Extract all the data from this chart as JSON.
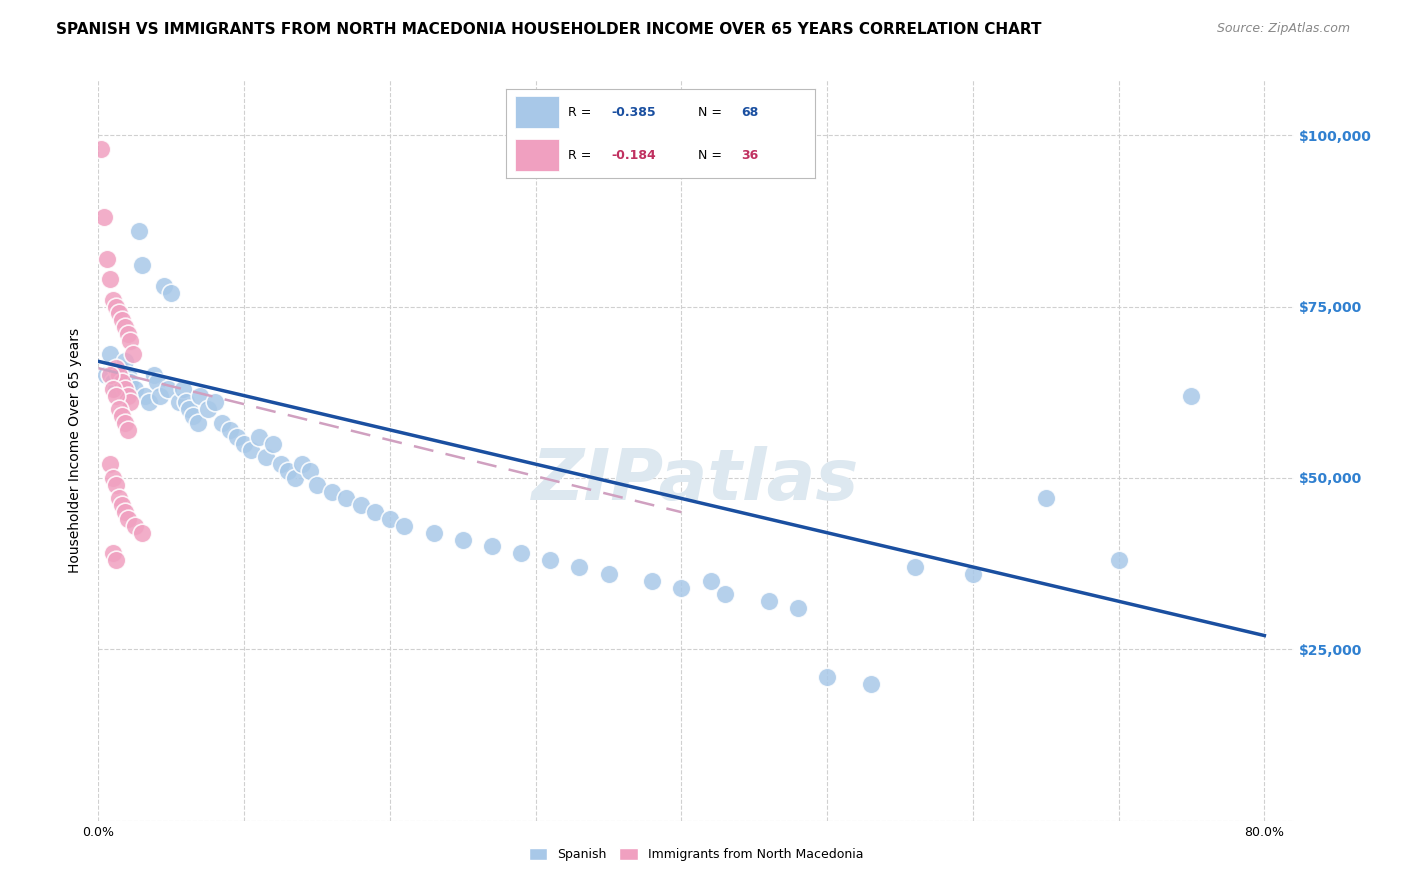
{
  "title": "SPANISH VS IMMIGRANTS FROM NORTH MACEDONIA HOUSEHOLDER INCOME OVER 65 YEARS CORRELATION CHART",
  "source": "Source: ZipAtlas.com",
  "ylabel": "Householder Income Over 65 years",
  "watermark": "ZIPatlas",
  "blue_scatter": [
    [
      0.005,
      65000
    ],
    [
      0.008,
      68000
    ],
    [
      0.01,
      64000
    ],
    [
      0.012,
      63000
    ],
    [
      0.015,
      66000
    ],
    [
      0.018,
      67000
    ],
    [
      0.02,
      65000
    ],
    [
      0.022,
      64000
    ],
    [
      0.025,
      63000
    ],
    [
      0.028,
      86000
    ],
    [
      0.03,
      81000
    ],
    [
      0.032,
      62000
    ],
    [
      0.035,
      61000
    ],
    [
      0.038,
      65000
    ],
    [
      0.04,
      64000
    ],
    [
      0.042,
      62000
    ],
    [
      0.045,
      78000
    ],
    [
      0.048,
      63000
    ],
    [
      0.05,
      77000
    ],
    [
      0.055,
      61000
    ],
    [
      0.058,
      63000
    ],
    [
      0.06,
      61000
    ],
    [
      0.062,
      60000
    ],
    [
      0.065,
      59000
    ],
    [
      0.068,
      58000
    ],
    [
      0.07,
      62000
    ],
    [
      0.075,
      60000
    ],
    [
      0.08,
      61000
    ],
    [
      0.085,
      58000
    ],
    [
      0.09,
      57000
    ],
    [
      0.095,
      56000
    ],
    [
      0.1,
      55000
    ],
    [
      0.105,
      54000
    ],
    [
      0.11,
      56000
    ],
    [
      0.115,
      53000
    ],
    [
      0.12,
      55000
    ],
    [
      0.125,
      52000
    ],
    [
      0.13,
      51000
    ],
    [
      0.135,
      50000
    ],
    [
      0.14,
      52000
    ],
    [
      0.145,
      51000
    ],
    [
      0.15,
      49000
    ],
    [
      0.16,
      48000
    ],
    [
      0.17,
      47000
    ],
    [
      0.18,
      46000
    ],
    [
      0.19,
      45000
    ],
    [
      0.2,
      44000
    ],
    [
      0.21,
      43000
    ],
    [
      0.23,
      42000
    ],
    [
      0.25,
      41000
    ],
    [
      0.27,
      40000
    ],
    [
      0.29,
      39000
    ],
    [
      0.31,
      38000
    ],
    [
      0.33,
      37000
    ],
    [
      0.35,
      36000
    ],
    [
      0.38,
      35000
    ],
    [
      0.4,
      34000
    ],
    [
      0.42,
      35000
    ],
    [
      0.43,
      33000
    ],
    [
      0.46,
      32000
    ],
    [
      0.48,
      31000
    ],
    [
      0.5,
      21000
    ],
    [
      0.53,
      20000
    ],
    [
      0.56,
      37000
    ],
    [
      0.6,
      36000
    ],
    [
      0.65,
      47000
    ],
    [
      0.7,
      38000
    ],
    [
      0.75,
      62000
    ]
  ],
  "pink_scatter": [
    [
      0.002,
      98000
    ],
    [
      0.004,
      88000
    ],
    [
      0.006,
      82000
    ],
    [
      0.008,
      79000
    ],
    [
      0.01,
      76000
    ],
    [
      0.012,
      75000
    ],
    [
      0.014,
      74000
    ],
    [
      0.016,
      73000
    ],
    [
      0.018,
      72000
    ],
    [
      0.02,
      71000
    ],
    [
      0.022,
      70000
    ],
    [
      0.024,
      68000
    ],
    [
      0.012,
      66000
    ],
    [
      0.014,
      65000
    ],
    [
      0.016,
      64000
    ],
    [
      0.018,
      63000
    ],
    [
      0.02,
      62000
    ],
    [
      0.022,
      61000
    ],
    [
      0.008,
      65000
    ],
    [
      0.01,
      63000
    ],
    [
      0.012,
      62000
    ],
    [
      0.014,
      60000
    ],
    [
      0.016,
      59000
    ],
    [
      0.018,
      58000
    ],
    [
      0.02,
      57000
    ],
    [
      0.008,
      52000
    ],
    [
      0.01,
      50000
    ],
    [
      0.012,
      49000
    ],
    [
      0.014,
      47000
    ],
    [
      0.016,
      46000
    ],
    [
      0.018,
      45000
    ],
    [
      0.02,
      44000
    ],
    [
      0.025,
      43000
    ],
    [
      0.03,
      42000
    ],
    [
      0.01,
      39000
    ],
    [
      0.012,
      38000
    ]
  ],
  "blue_line": {
    "x": [
      0.0,
      0.8
    ],
    "y": [
      67000,
      27000
    ]
  },
  "pink_line": {
    "x": [
      0.0,
      0.4
    ],
    "y": [
      66000,
      45000
    ]
  },
  "yticks": [
    0,
    25000,
    50000,
    75000,
    100000
  ],
  "xtick_positions": [
    0.0,
    0.1,
    0.2,
    0.3,
    0.4,
    0.5,
    0.6,
    0.7,
    0.8
  ],
  "xlim": [
    0.0,
    0.82
  ],
  "ylim": [
    0,
    108000
  ],
  "grid_color": "#d0d0d0",
  "blue_color": "#a8c8e8",
  "pink_color": "#f0a0c0",
  "blue_line_color": "#1a4fa0",
  "pink_dashed_color": "#d0a0c0",
  "title_fontsize": 11,
  "source_fontsize": 9,
  "axis_label_fontsize": 10,
  "tick_fontsize": 9,
  "right_tick_color": "#3080d0",
  "watermark_color": "#dde8f0",
  "watermark_fontsize": 52
}
